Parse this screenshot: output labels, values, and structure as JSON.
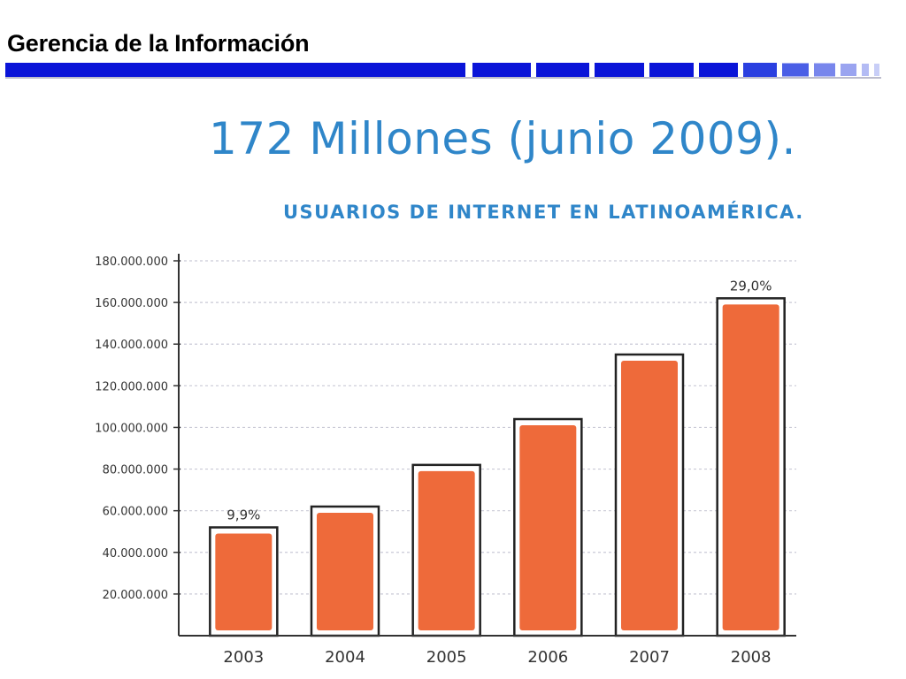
{
  "slide": {
    "title": "Gerencia de la Información",
    "accent_color": "#0a14d8"
  },
  "chart_data": {
    "type": "bar",
    "title": "172 Millones (junio 2009).",
    "subtitle": "USUARIOS DE INTERNET EN LATINOAMÉRICA.",
    "categories": [
      "2003",
      "2004",
      "2005",
      "2006",
      "2007",
      "2008"
    ],
    "values": [
      52000000,
      62000000,
      82000000,
      104000000,
      135000000,
      162000000
    ],
    "data_labels": [
      "9,9%",
      "",
      "",
      "",
      "",
      "29,0%"
    ],
    "y_ticks": [
      20000000,
      40000000,
      60000000,
      80000000,
      100000000,
      120000000,
      140000000,
      160000000,
      180000000
    ],
    "y_tick_labels": [
      "20.000.000",
      "40.000.000",
      "60.000.000",
      "80.000.000",
      "100.000.000",
      "120.000.000",
      "140.000.000",
      "160.000.000",
      "180.000.000"
    ],
    "ylim": [
      0,
      180000000
    ],
    "xlabel": "",
    "ylabel": "",
    "grid": true,
    "colors": {
      "bar": "#ee6a3a",
      "bar_outline": "#222222",
      "title": "#2f86c9",
      "grid": "#c9c9d6"
    }
  }
}
